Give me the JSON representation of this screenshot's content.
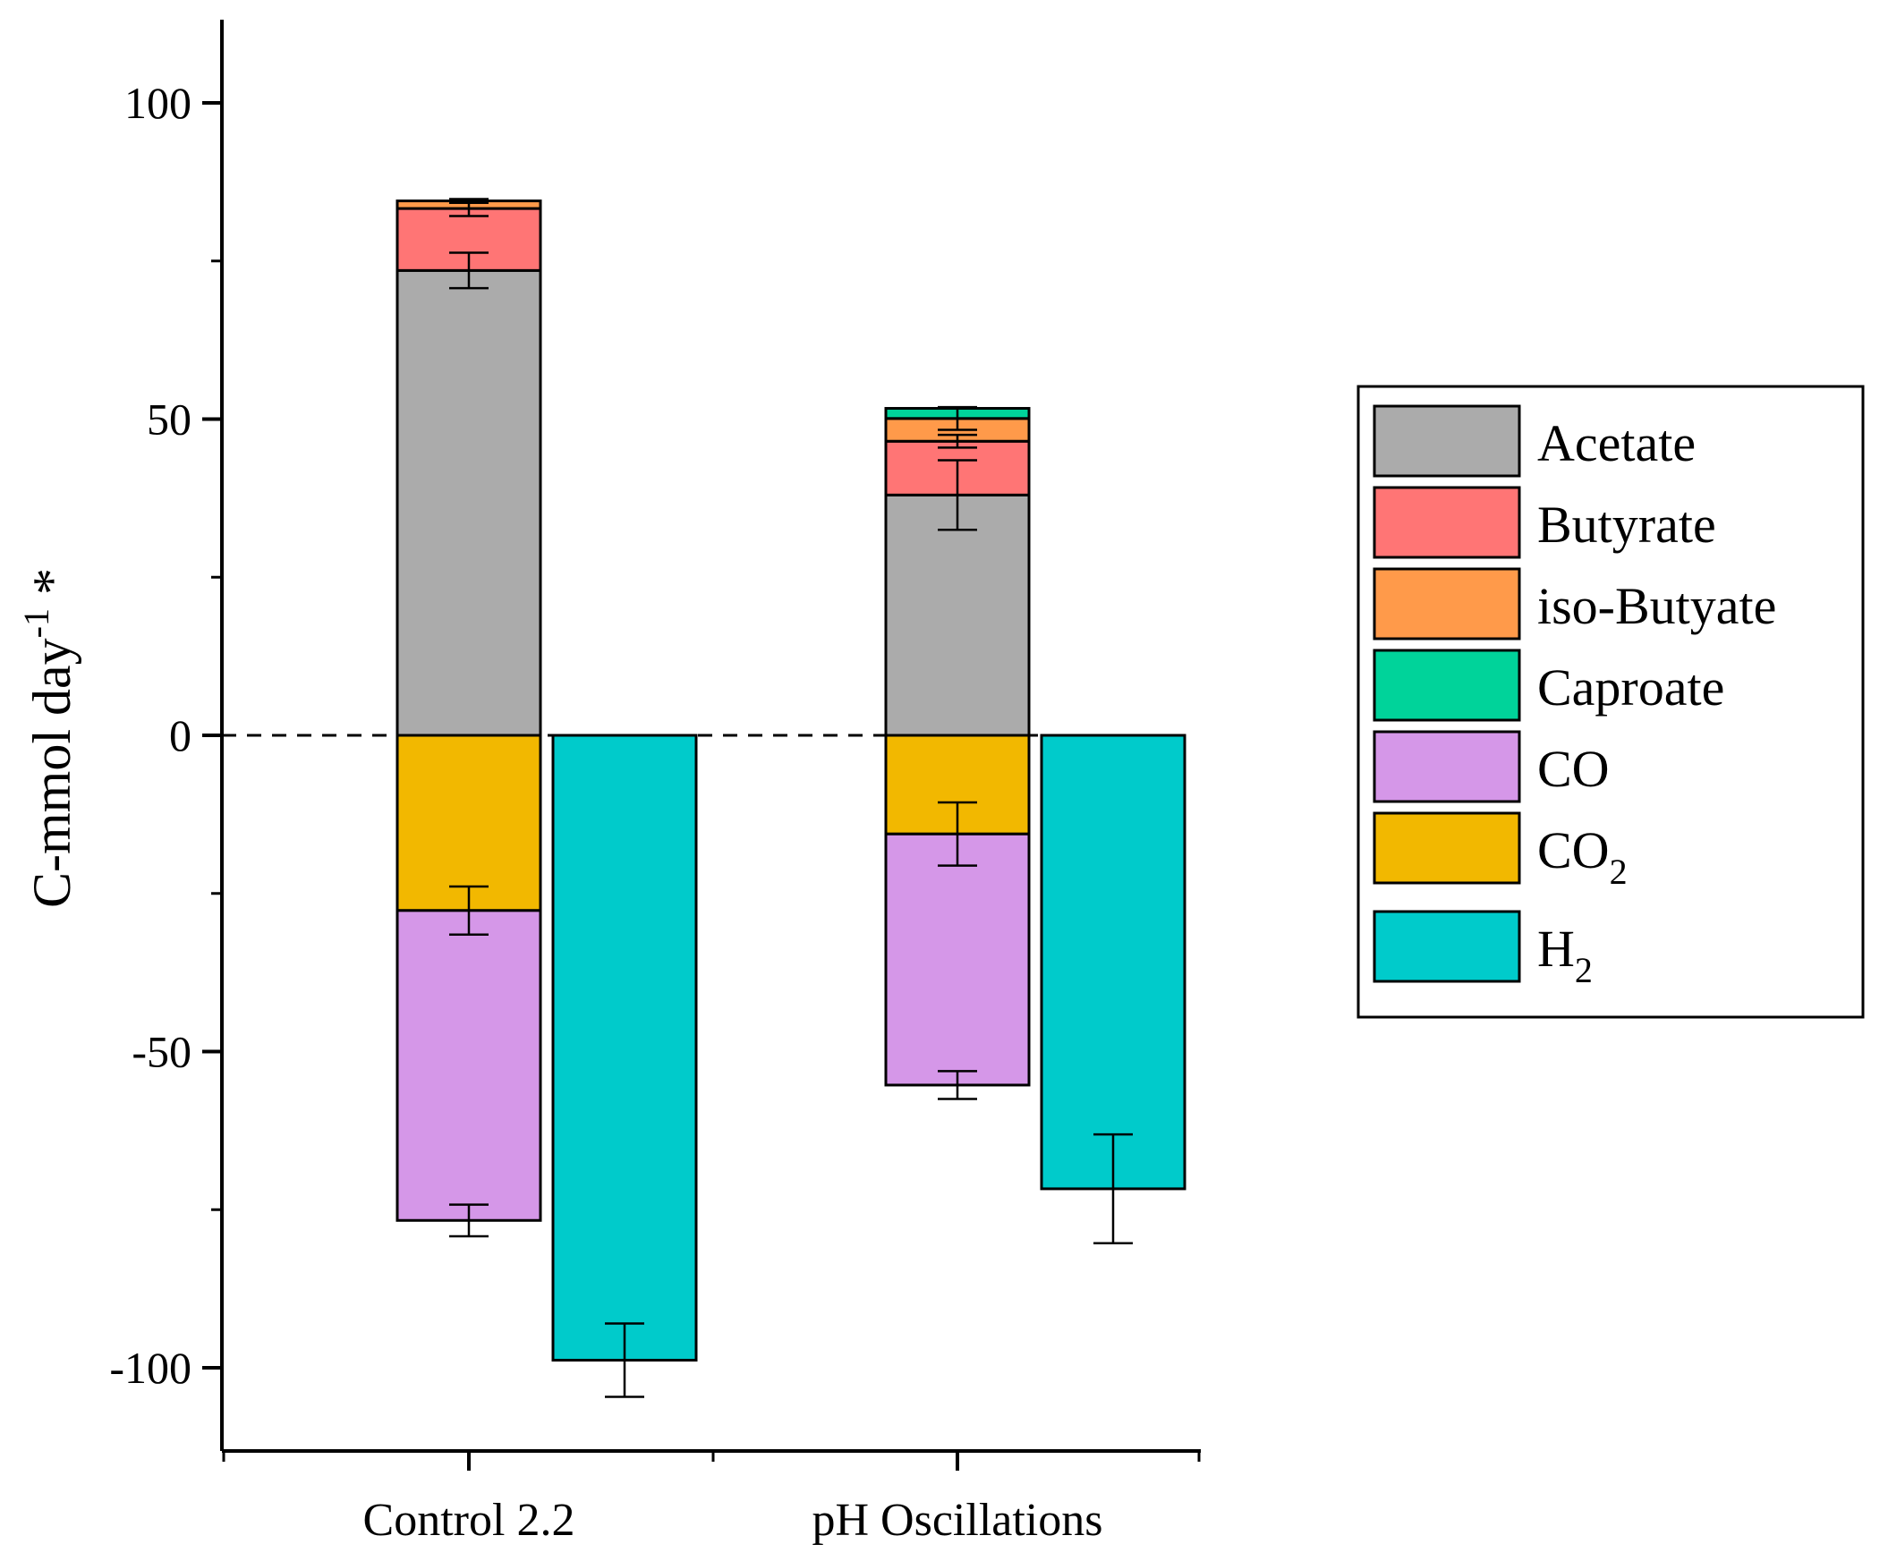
{
  "chart_data": {
    "type": "bar",
    "stacked": true,
    "title": "",
    "xlabel": "",
    "ylabel": {
      "main": "C-mmol day",
      "superscript": "-1",
      "suffix": " *"
    },
    "ylim": [
      -112,
      112
    ],
    "yticks": [
      100,
      50,
      0,
      -50,
      -100
    ],
    "ytick_labels": [
      "100",
      "50",
      "0",
      "-50",
      "-100"
    ],
    "categories": [
      "Control 2.2",
      "pH Oscillations"
    ],
    "zero_line": "dashed",
    "colors": {
      "Acetate": "#ababab",
      "Butyrate": "#ff7575",
      "iso-Butyate": "#ff9a4a",
      "Caproate": "#00d39a",
      "CO": "#d597e8",
      "CO2": "#f2b800",
      "H2": "#00cbcb"
    },
    "legend": {
      "position": "right",
      "entries": [
        {
          "key": "Acetate",
          "label": "Acetate"
        },
        {
          "key": "Butyrate",
          "label": "Butyrate"
        },
        {
          "key": "iso-Butyate",
          "label": "iso-Butyate"
        },
        {
          "key": "Caproate",
          "label": "Caproate"
        },
        {
          "key": "CO",
          "label": "CO"
        },
        {
          "key": "CO2",
          "label": "CO",
          "sub": "2"
        },
        {
          "key": "H2",
          "label": "H",
          "sub": "2"
        }
      ]
    },
    "series": [
      {
        "name": "Acetate",
        "group": "products",
        "values": [
          73.5,
          38.0
        ],
        "err_low": [
          2.8,
          5.5
        ],
        "err_high": [
          2.8,
          5.5
        ]
      },
      {
        "name": "Butyrate",
        "group": "products",
        "values": [
          9.8,
          8.5
        ],
        "err_low": [
          1.2,
          1.0
        ],
        "err_high": [
          1.2,
          1.0
        ]
      },
      {
        "name": "iso-Butyate",
        "group": "products",
        "values": [
          1.2,
          3.6
        ],
        "err_low": [
          0.3,
          1.8
        ],
        "err_high": [
          0.3,
          1.8
        ]
      },
      {
        "name": "Caproate",
        "group": "products",
        "values": [
          0.0,
          1.6
        ],
        "err_low": [
          0,
          0
        ],
        "err_high": [
          0,
          0
        ]
      },
      {
        "name": "CO2",
        "group": "substrates",
        "values": [
          -27.7,
          -15.6
        ],
        "err_low": [
          3.8,
          5.0
        ],
        "err_high": [
          3.8,
          5.0
        ]
      },
      {
        "name": "CO",
        "group": "substrates",
        "values": [
          -49.0,
          -39.7
        ],
        "err_low": [
          2.5,
          2.2
        ],
        "err_high": [
          2.5,
          2.2
        ]
      },
      {
        "name": "H2",
        "group": "hydrogen",
        "values": [
          -98.8,
          -71.7
        ],
        "err_low": [
          5.8,
          8.6
        ],
        "err_high": [
          5.8,
          8.6
        ]
      }
    ]
  }
}
